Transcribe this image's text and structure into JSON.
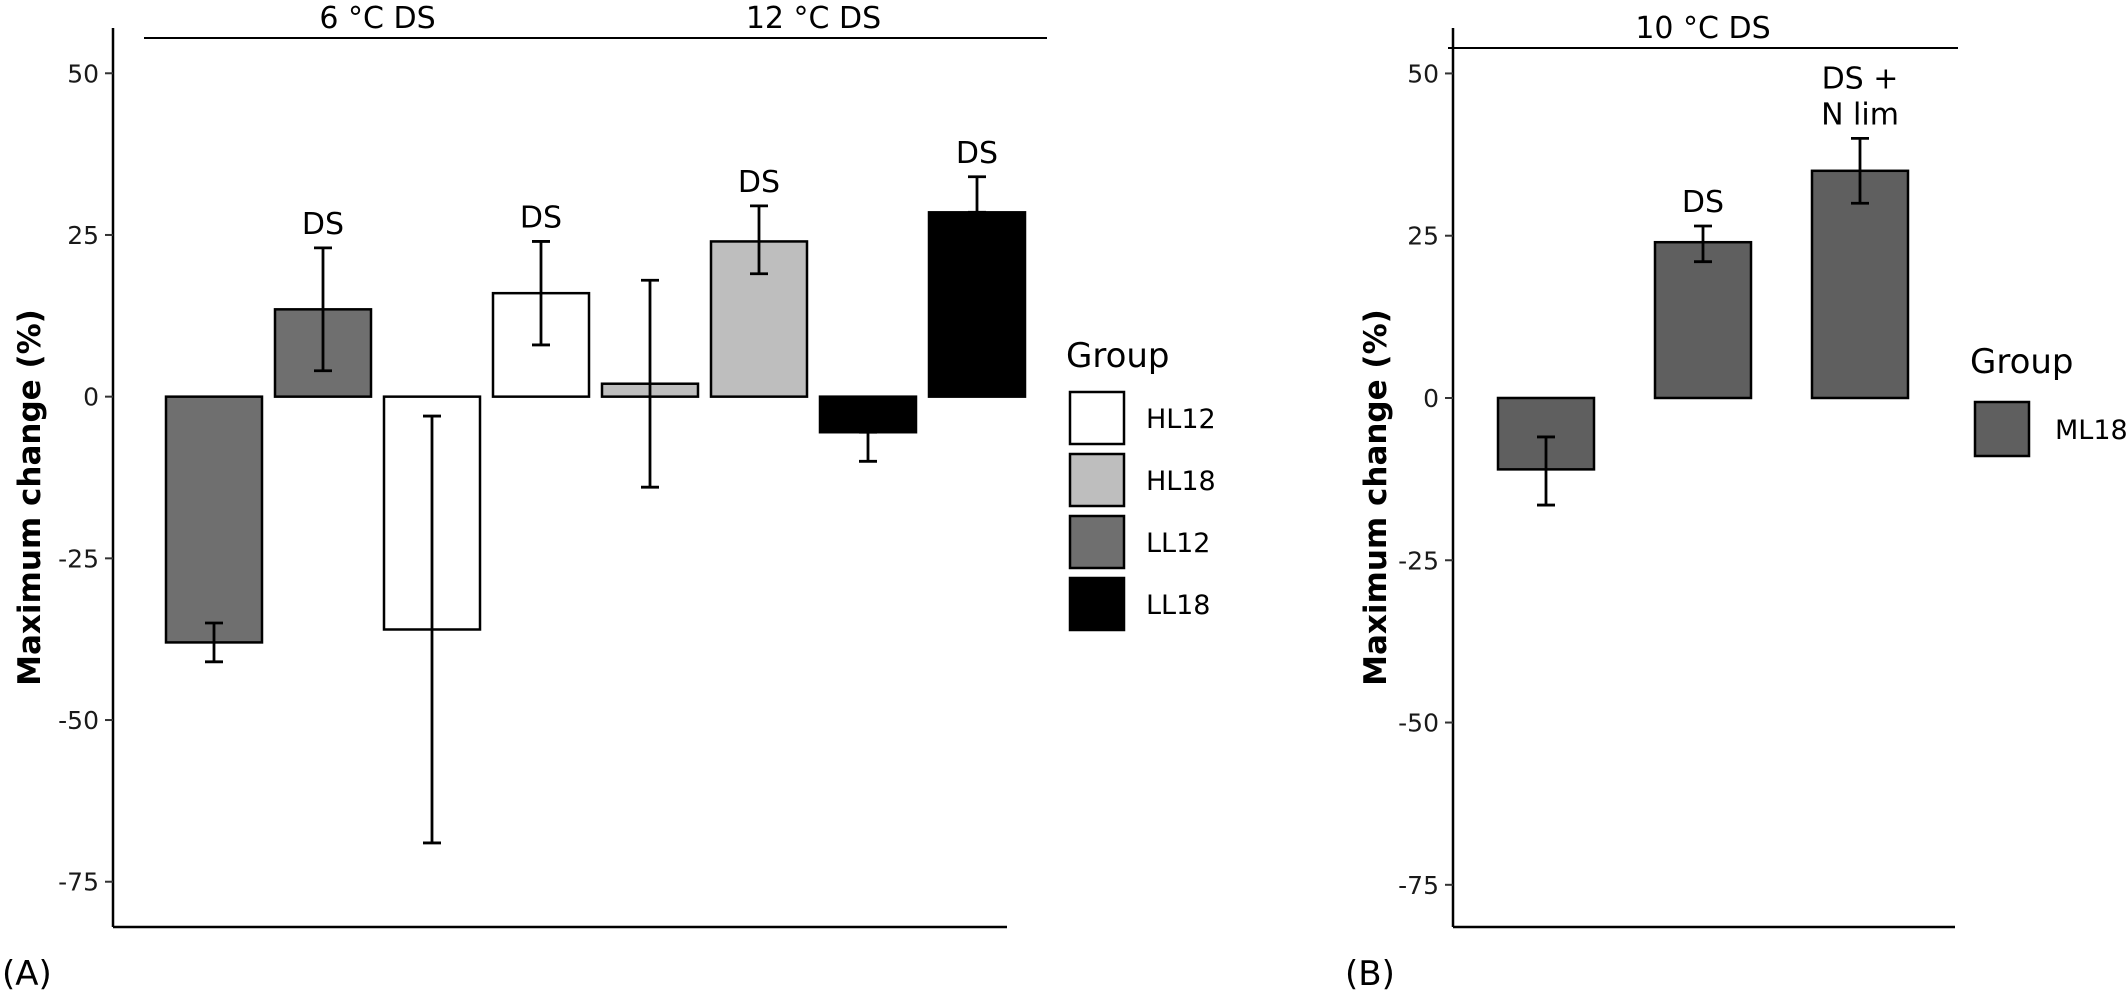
{
  "chart_data": [
    {
      "type": "bar",
      "panel_label": "(A)",
      "ylabel": "Maximum change (%)",
      "ylim": [
        -82,
        57
      ],
      "yticks": [
        -75,
        -50,
        -25,
        0,
        25,
        50
      ],
      "ytick_labels": [
        "-75",
        "-50",
        "-25",
        "0",
        "25",
        "50"
      ],
      "bars": [
        {
          "group": "LL12",
          "value": -38,
          "err_low": -41,
          "err_high": -35,
          "annotation": ""
        },
        {
          "group": "LL12",
          "value": 13.5,
          "err_low": 4,
          "err_high": 23,
          "annotation": "DS"
        },
        {
          "group": "HL12",
          "value": -36,
          "err_low": -69,
          "err_high": -3,
          "annotation": ""
        },
        {
          "group": "HL12",
          "value": 16,
          "err_low": 8,
          "err_high": 24,
          "annotation": "DS"
        },
        {
          "group": "HL18",
          "value": 2,
          "err_low": -14,
          "err_high": 18,
          "annotation": ""
        },
        {
          "group": "HL18",
          "value": 24,
          "err_low": 19,
          "err_high": 29.5,
          "annotation": "DS"
        },
        {
          "group": "LL18",
          "value": -5.5,
          "err_low": -10,
          "err_high": -5.5,
          "annotation": ""
        },
        {
          "group": "LL18",
          "value": 28.5,
          "err_low": 28.5,
          "err_high": 34,
          "annotation": "DS"
        }
      ],
      "brackets": [
        {
          "label": "6 °C DS",
          "from_bar": 0,
          "to_bar": 3
        },
        {
          "label": "12 °C DS",
          "from_bar": 4,
          "to_bar": 7
        }
      ],
      "legend": {
        "title": "Group",
        "placement": "right",
        "items": [
          {
            "label": "HL12",
            "color": "#ffffff"
          },
          {
            "label": "HL18",
            "color": "#bebebe"
          },
          {
            "label": "LL12",
            "color": "#6f6f6f"
          },
          {
            "label": "LL18",
            "color": "#000000"
          }
        ]
      }
    },
    {
      "type": "bar",
      "panel_label": "(B)",
      "ylabel": "Maximum change (%)",
      "ylim": [
        -81.5,
        57
      ],
      "yticks": [
        -75,
        -50,
        -25,
        0,
        25,
        50
      ],
      "ytick_labels": [
        "-75",
        "-50",
        "-25",
        "0",
        "25",
        "50"
      ],
      "bars": [
        {
          "group": "ML18",
          "value": -11,
          "err_low": -16.5,
          "err_high": -6,
          "annotation": ""
        },
        {
          "group": "ML18",
          "value": 24,
          "err_low": 21,
          "err_high": 26.5,
          "annotation": "DS"
        },
        {
          "group": "ML18",
          "value": 35,
          "err_low": 30,
          "err_high": 40,
          "annotation": "DS +\nN lim"
        }
      ],
      "brackets": [
        {
          "label": "10 °C DS",
          "from_bar": 0,
          "to_bar": 2
        }
      ],
      "legend": {
        "title": "Group",
        "placement": "right",
        "items": [
          {
            "label": "ML18",
            "color": "#5f5f5f"
          }
        ]
      }
    }
  ]
}
